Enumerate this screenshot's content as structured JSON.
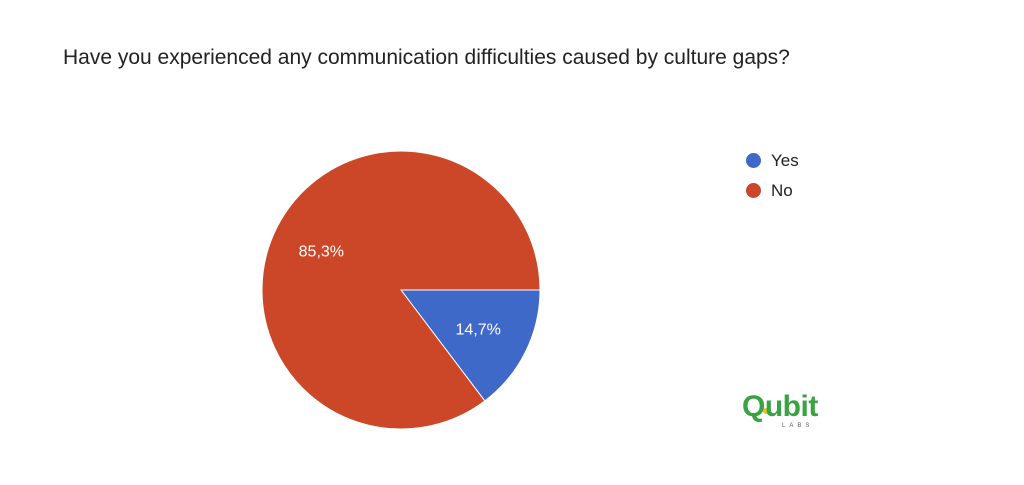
{
  "chart_data": {
    "type": "pie",
    "title": "Have you experienced any communication difficulties caused by culture gaps?",
    "legend_position": "right",
    "slices": [
      {
        "label": "Yes",
        "value": 14.7,
        "display": "14,7%",
        "color": "#3e69c9"
      },
      {
        "label": "No",
        "value": 85.3,
        "display": "85,3%",
        "color": "#cb4728"
      }
    ]
  },
  "logo": {
    "text": "Qubit",
    "subtext": "LABS",
    "color": "#3aa341",
    "accent_color": "#e8c21a"
  }
}
